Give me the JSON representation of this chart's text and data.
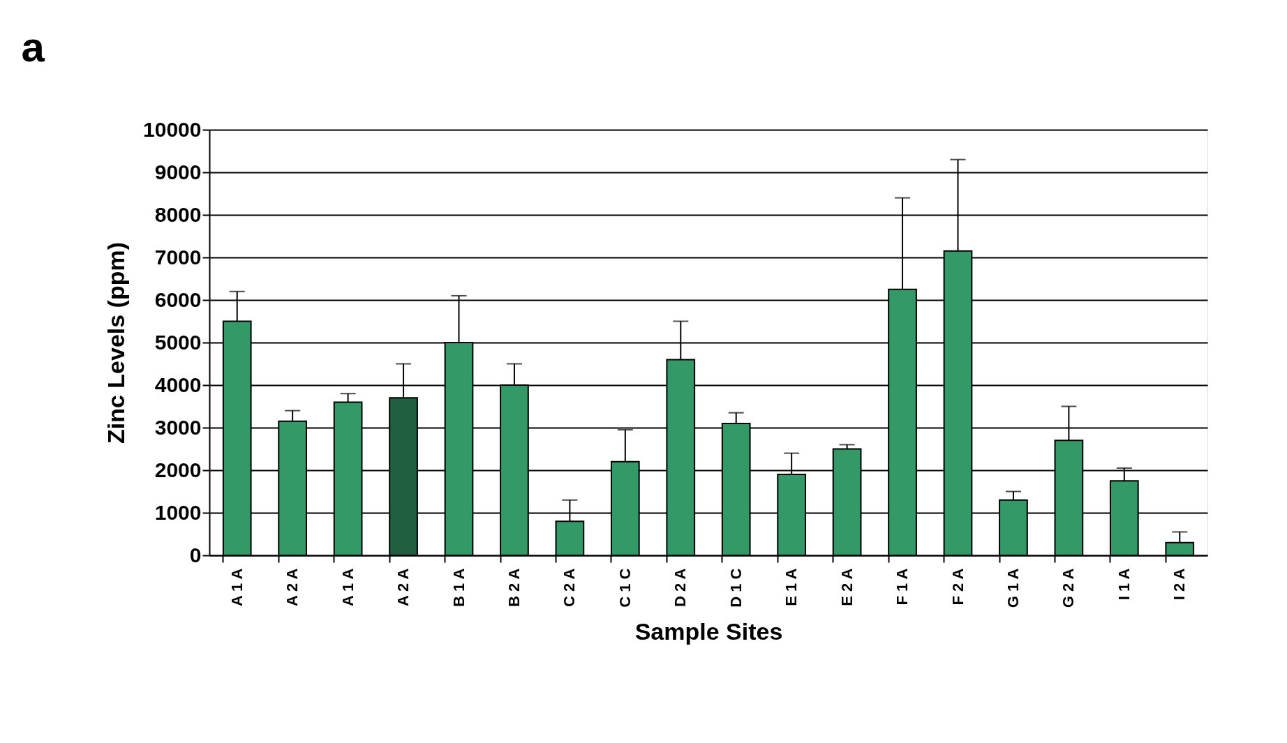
{
  "chart_data": {
    "type": "bar",
    "title": "a",
    "xlabel": "Sample Sites",
    "ylabel": "Zinc Levels (ppm)",
    "categories": [
      "A 1 A",
      "A 2 A",
      "A 1 A",
      "A 2 A",
      "B 1 A",
      "B 2 A",
      "C 2 A",
      "C 1 C",
      "D 2 A",
      "D 1 C",
      "E 1 A",
      "E 2 A",
      "F 1 A",
      "F 2 A",
      "G 1 A",
      "G 2 A",
      "I 1 A",
      "I 2 A"
    ],
    "values": [
      5500,
      3150,
      3600,
      3700,
      5000,
      4000,
      800,
      2200,
      4600,
      3100,
      1900,
      2500,
      6250,
      7150,
      1300,
      2700,
      1750,
      300
    ],
    "colors": [
      "#339966",
      "#339966",
      "#339966",
      "#206040",
      "#339966",
      "#339966",
      "#339966",
      "#339966",
      "#339966",
      "#339966",
      "#339966",
      "#339966",
      "#339966",
      "#339966",
      "#339966",
      "#339966",
      "#339966",
      "#339966"
    ],
    "errors": [
      [
        5500,
        6200
      ],
      [
        3150,
        3400
      ],
      [
        3600,
        3800
      ],
      [
        3700,
        4500
      ],
      [
        5000,
        6100
      ],
      [
        4000,
        4500
      ],
      [
        800,
        1300
      ],
      [
        2200,
        2950
      ],
      [
        4600,
        5500
      ],
      [
        3100,
        3350
      ],
      [
        1900,
        2400
      ],
      [
        2500,
        2600
      ],
      [
        6250,
        8400
      ],
      [
        7150,
        9300
      ],
      [
        1300,
        1500
      ],
      [
        2700,
        3500
      ],
      [
        1750,
        2050
      ],
      [
        300,
        550
      ]
    ],
    "ylim": [
      0,
      10000
    ],
    "yticks": [
      0,
      1000,
      2000,
      3000,
      4000,
      5000,
      6000,
      7000,
      8000,
      9000,
      10000
    ],
    "grid": "y"
  }
}
